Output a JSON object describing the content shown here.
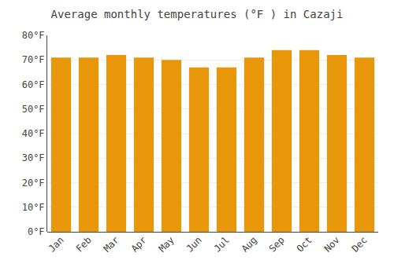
{
  "chart_data": {
    "type": "bar",
    "title": "Average monthly temperatures (°F ) in Cazaji",
    "categories": [
      "Jan",
      "Feb",
      "Mar",
      "Apr",
      "May",
      "Jun",
      "Jul",
      "Aug",
      "Sep",
      "Oct",
      "Nov",
      "Dec"
    ],
    "values": [
      71,
      71,
      72,
      71,
      70,
      67,
      67,
      71,
      74,
      74,
      72,
      71
    ],
    "color": "#E8960A",
    "ylim": [
      0,
      80
    ],
    "yticks": [
      {
        "value": 0,
        "label": "0°F"
      },
      {
        "value": 10,
        "label": "10°F"
      },
      {
        "value": 20,
        "label": "20°F"
      },
      {
        "value": 30,
        "label": "30°F"
      },
      {
        "value": 40,
        "label": "40°F"
      },
      {
        "value": 50,
        "label": "50°F"
      },
      {
        "value": 60,
        "label": "60°F"
      },
      {
        "value": 70,
        "label": "70°F"
      },
      {
        "value": 80,
        "label": "80°F"
      }
    ],
    "grid": true
  }
}
